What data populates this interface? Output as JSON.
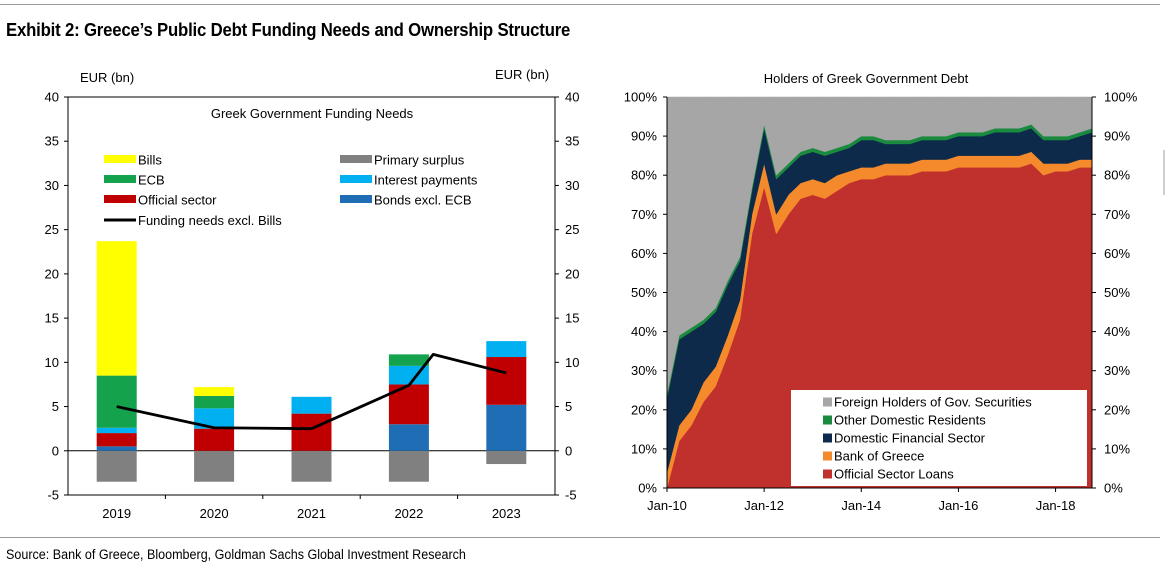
{
  "title": "Exhibit 2: Greece’s Public Debt Funding Needs and Ownership Structure",
  "source": "Source: Bank of Greece, Bloomberg, Goldman Sachs Global Investment Research",
  "chart_data": [
    {
      "type": "bar",
      "stacked": true,
      "title": "Greek Government Funding Needs",
      "left_unit": "EUR (bn)",
      "right_unit": "EUR (bn)",
      "ylim": [
        -5,
        40
      ],
      "yticks": [
        -5,
        0,
        5,
        10,
        15,
        20,
        25,
        30,
        35,
        40
      ],
      "categories": [
        "2019",
        "2020",
        "2021",
        "2022",
        "2023"
      ],
      "legend_position": "top",
      "series": [
        {
          "name": "Primary surplus",
          "color": "#808080",
          "values": [
            -3.5,
            -3.5,
            -3.5,
            -3.5,
            -1.5
          ]
        },
        {
          "name": "Bonds excl. ECB",
          "color": "#1f6eb5",
          "values": [
            0.5,
            0.0,
            0.0,
            3.0,
            5.2
          ]
        },
        {
          "name": "Official sector",
          "color": "#c00000",
          "values": [
            1.5,
            2.5,
            4.2,
            4.5,
            5.4
          ]
        },
        {
          "name": "Interest payments",
          "color": "#00b0f0",
          "values": [
            0.6,
            2.3,
            1.9,
            2.1,
            1.8
          ]
        },
        {
          "name": "ECB",
          "color": "#14a24c",
          "values": [
            5.9,
            1.4,
            0.0,
            1.3,
            0.0
          ]
        },
        {
          "name": "Bills",
          "color": "#ffff00",
          "values": [
            15.2,
            1.0,
            0.0,
            0.0,
            0.0
          ]
        }
      ],
      "line": {
        "name": "Funding needs excl. Bills",
        "color": "#000000",
        "values": [
          5.0,
          2.6,
          2.5,
          7.4,
          8.8
        ],
        "peak": {
          "x": 3.25,
          "y": 10.9
        }
      },
      "legend_order": [
        "Bills",
        "Primary surplus",
        "ECB",
        "Interest payments",
        "Official sector",
        "Bonds excl. ECB",
        "Funding needs excl. Bills"
      ]
    },
    {
      "type": "area",
      "stacked": true,
      "title": "Holders of Greek Government Debt",
      "ylim": [
        0,
        100
      ],
      "yticks": [
        "0%",
        "10%",
        "20%",
        "30%",
        "40%",
        "50%",
        "60%",
        "70%",
        "80%",
        "90%",
        "100%"
      ],
      "xticks": [
        "Jan-10",
        "Jan-12",
        "Jan-14",
        "Jan-16",
        "Jan-18"
      ],
      "x": [
        "Jan-10",
        "Apr-10",
        "Jul-10",
        "Oct-10",
        "Jan-11",
        "Apr-11",
        "Jul-11",
        "Oct-11",
        "Jan-12",
        "Apr-12",
        "Jul-12",
        "Oct-12",
        "Jan-13",
        "Apr-13",
        "Jul-13",
        "Oct-13",
        "Jan-14",
        "Apr-14",
        "Jul-14",
        "Oct-14",
        "Jan-15",
        "Apr-15",
        "Jul-15",
        "Oct-15",
        "Jan-16",
        "Apr-16",
        "Jul-16",
        "Oct-16",
        "Jan-17",
        "Apr-17",
        "Jul-17",
        "Oct-17",
        "Jan-18",
        "Apr-18",
        "Jul-18",
        "Oct-18"
      ],
      "legend_position": "bottom-right",
      "series": [
        {
          "name": "Official Sector Loans",
          "color": "#c0302c",
          "values": [
            0,
            12,
            16,
            22,
            26,
            34,
            43,
            65,
            77,
            65,
            70,
            74,
            75,
            74,
            76,
            78,
            79,
            79,
            80,
            80,
            80,
            81,
            81,
            81,
            82,
            82,
            82,
            82,
            82,
            82,
            83,
            80,
            81,
            81,
            82,
            82
          ]
        },
        {
          "name": "Bank of Greece",
          "color": "#f58a2c",
          "values": [
            4,
            4,
            4,
            5,
            5,
            5,
            5,
            5,
            6,
            5,
            5,
            4,
            4,
            4,
            4,
            3,
            3,
            3,
            3,
            3,
            3,
            3,
            3,
            3,
            3,
            3,
            3,
            3,
            3,
            3,
            3,
            3,
            2,
            2,
            2,
            2
          ]
        },
        {
          "name": "Domestic Financial Sector",
          "color": "#0d2a4a",
          "values": [
            19,
            22,
            20,
            15,
            14,
            13,
            10,
            6,
            9,
            9,
            7,
            7,
            7,
            7,
            6,
            6,
            7,
            7,
            5,
            5,
            5,
            5,
            5,
            5,
            5,
            5,
            5,
            6,
            6,
            6,
            6,
            6,
            6,
            6,
            6,
            7
          ]
        },
        {
          "name": "Other Domestic Residents",
          "color": "#1a8a3e",
          "values": [
            1,
            1,
            1,
            1,
            1,
            1,
            1,
            1,
            1,
            1,
            1,
            1,
            1,
            1,
            1,
            1,
            1,
            1,
            1,
            1,
            1,
            1,
            1,
            1,
            1,
            1,
            1,
            1,
            1,
            1,
            1,
            1,
            1,
            1,
            1,
            1
          ]
        },
        {
          "name": "Foreign Holders of Gov. Securities",
          "color": "#a6a6a6",
          "values": [
            76,
            61,
            59,
            57,
            54,
            47,
            41,
            23,
            7,
            20,
            17,
            14,
            13,
            14,
            13,
            12,
            10,
            10,
            11,
            11,
            11,
            10,
            10,
            10,
            9,
            9,
            9,
            8,
            8,
            8,
            7,
            10,
            10,
            10,
            9,
            8
          ]
        }
      ]
    }
  ]
}
